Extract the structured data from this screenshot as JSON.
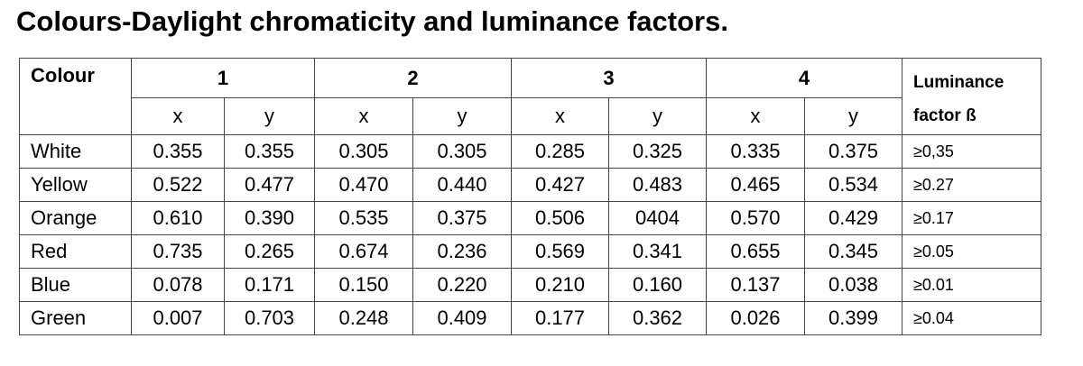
{
  "title": "Colours-Daylight chromaticity and luminance factors.",
  "table": {
    "colour_header": "Colour",
    "groups": [
      "1",
      "2",
      "3",
      "4"
    ],
    "sub_headers": [
      "x",
      "y",
      "x",
      "y",
      "x",
      "y",
      "x",
      "y"
    ],
    "luminance_header_line1": "Luminance",
    "luminance_header_line2": "factor ß",
    "rows": [
      {
        "colour": "White",
        "values": [
          "0.355",
          "0.355",
          "0.305",
          "0.305",
          "0.285",
          "0.325",
          "0.335",
          "0.375"
        ],
        "luminance": "≥0,35"
      },
      {
        "colour": "Yellow",
        "values": [
          "0.522",
          "0.477",
          "0.470",
          "0.440",
          "0.427",
          "0.483",
          "0.465",
          "0.534"
        ],
        "luminance": "≥0.27"
      },
      {
        "colour": "Orange",
        "values": [
          "0.610",
          "0.390",
          "0.535",
          "0.375",
          "0.506",
          "0404",
          "0.570",
          "0.429"
        ],
        "luminance": "≥0.17"
      },
      {
        "colour": "Red",
        "values": [
          "0.735",
          "0.265",
          "0.674",
          "0.236",
          "0.569",
          "0.341",
          "0.655",
          "0.345"
        ],
        "luminance": "≥0.05"
      },
      {
        "colour": "Blue",
        "values": [
          "0.078",
          "0.171",
          "0.150",
          "0.220",
          "0.210",
          "0.160",
          "0.137",
          "0.038"
        ],
        "luminance": "≥0.01"
      },
      {
        "colour": "Green",
        "values": [
          "0.007",
          "0.703",
          "0.248",
          "0.409",
          "0.177",
          "0.362",
          "0.026",
          "0.399"
        ],
        "luminance": "≥0.04"
      }
    ]
  }
}
